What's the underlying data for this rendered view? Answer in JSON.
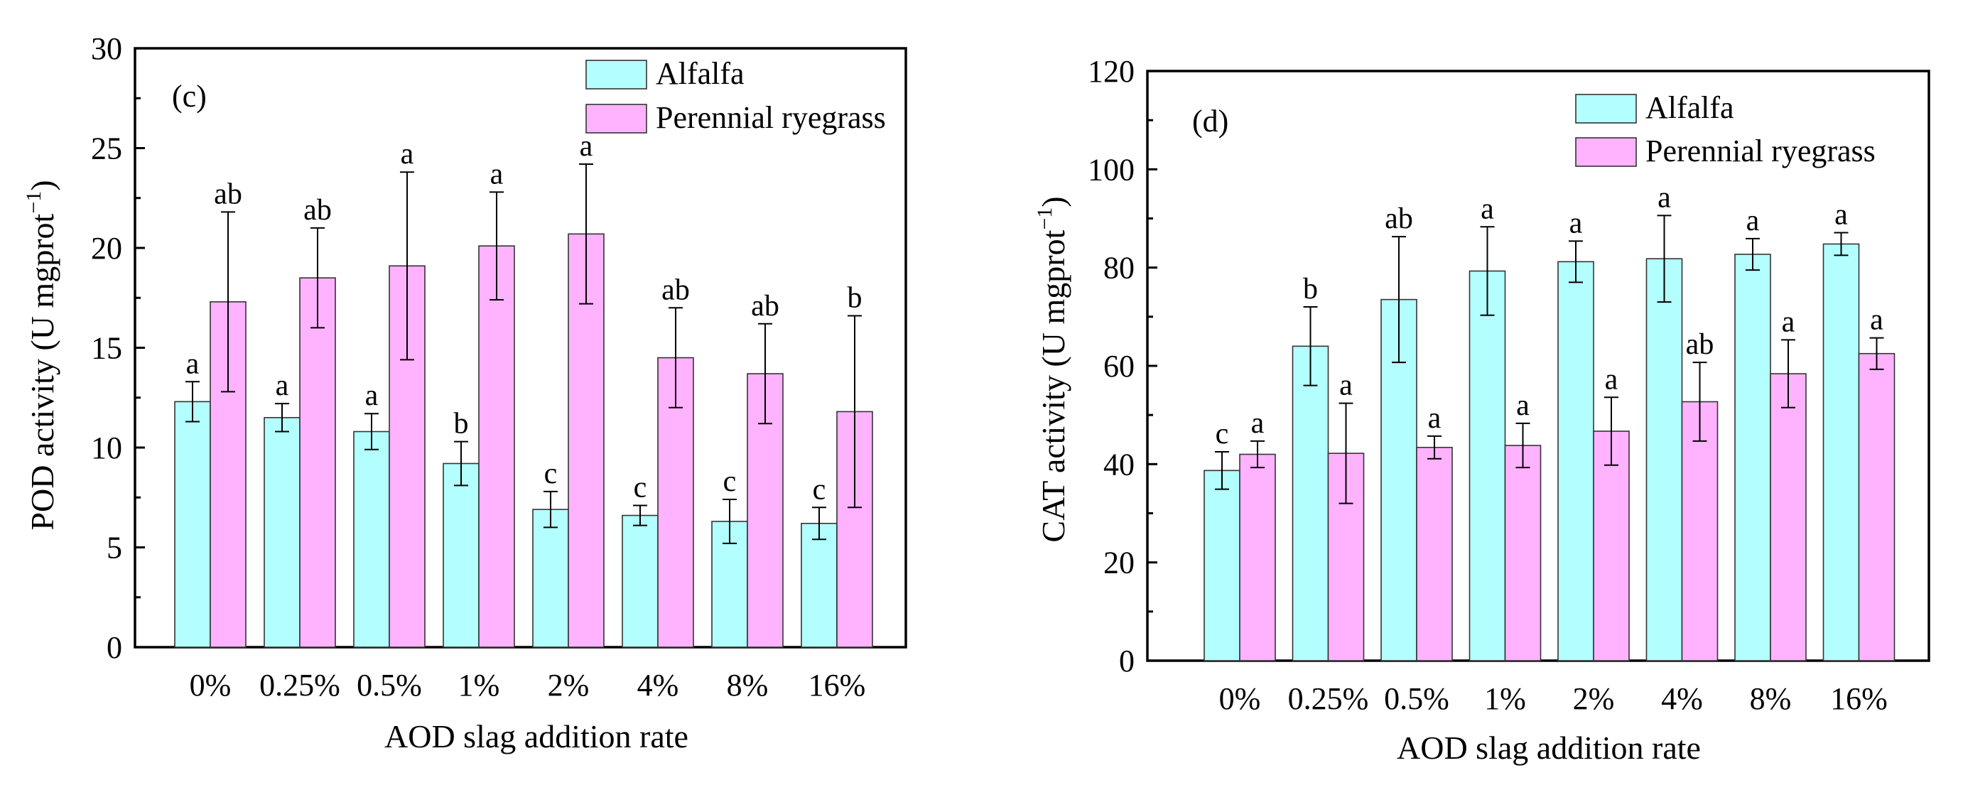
{
  "chart_data": [
    {
      "type": "bar",
      "panel_label": "(c)",
      "xlabel": "AOD slag addition rate",
      "ylabel": "POD activity (U mgprot",
      "ylabel_superscript": "−1",
      "ylabel_close": ")",
      "ylim": [
        0,
        30
      ],
      "yticks": [
        "0",
        "5",
        "10",
        "15",
        "20",
        "25",
        "30"
      ],
      "categories": [
        "0%",
        "0.25%",
        "0.5%",
        "1%",
        "2%",
        "4%",
        "8%",
        "16%"
      ],
      "legend_position": "top-right",
      "series": [
        {
          "name": "Alfalfa",
          "color": "#b3ffff",
          "values": [
            12.3,
            11.5,
            10.8,
            9.2,
            6.9,
            6.6,
            6.3,
            6.2
          ],
          "errors": [
            1.0,
            0.7,
            0.9,
            1.1,
            0.9,
            0.5,
            1.1,
            0.8
          ],
          "significance": [
            "a",
            "a",
            "a",
            "b",
            "c",
            "c",
            "c",
            "c"
          ]
        },
        {
          "name": "Perennial ryegrass",
          "color": "#ffb3ff",
          "values": [
            17.3,
            18.5,
            19.1,
            20.1,
            20.7,
            14.5,
            13.7,
            11.8
          ],
          "errors": [
            4.5,
            2.5,
            4.7,
            2.7,
            3.5,
            2.5,
            2.5,
            4.8
          ],
          "significance": [
            "ab",
            "ab",
            "a",
            "a",
            "a",
            "ab",
            "ab",
            "b"
          ]
        }
      ]
    },
    {
      "type": "bar",
      "panel_label": "(d)",
      "xlabel": "AOD slag addition rate",
      "ylabel": "CAT activity (U mgprot",
      "ylabel_superscript": "−1",
      "ylabel_close": ")",
      "ylim": [
        0,
        120
      ],
      "yticks": [
        "0",
        "20",
        "40",
        "60",
        "80",
        "100",
        "120"
      ],
      "categories": [
        "0%",
        "0.25%",
        "0.5%",
        "1%",
        "2%",
        "4%",
        "8%",
        "16%"
      ],
      "legend_position": "top-right",
      "series": [
        {
          "name": "Alfalfa",
          "color": "#b3ffff",
          "values": [
            38.7,
            64.0,
            73.5,
            79.3,
            81.2,
            81.8,
            82.7,
            84.8
          ],
          "errors": [
            3.8,
            8.0,
            12.8,
            9.0,
            4.2,
            8.8,
            3.2,
            2.3
          ],
          "significance": [
            "c",
            "b",
            "ab",
            "a",
            "a",
            "a",
            "a",
            "a"
          ]
        },
        {
          "name": "Perennial ryegrass",
          "color": "#ffb3ff",
          "values": [
            42.0,
            42.2,
            43.4,
            43.8,
            46.7,
            52.7,
            58.4,
            62.5
          ],
          "errors": [
            2.7,
            10.2,
            2.3,
            4.5,
            6.9,
            8.0,
            6.9,
            3.2
          ],
          "significance": [
            "a",
            "a",
            "a",
            "a",
            "a",
            "ab",
            "a",
            "a"
          ]
        }
      ]
    }
  ]
}
